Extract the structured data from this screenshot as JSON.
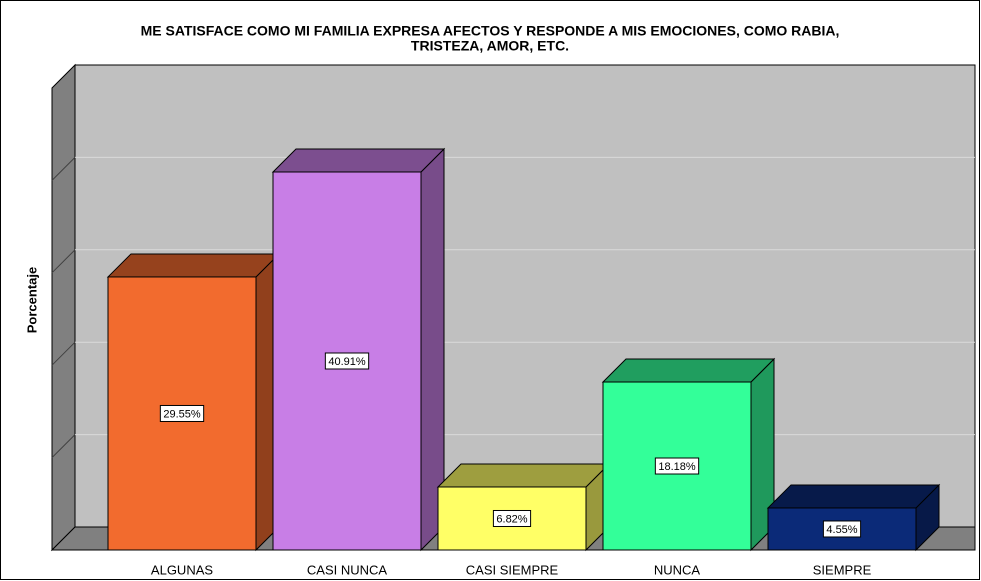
{
  "chart_data": {
    "type": "bar3d",
    "title": [
      "ME SATISFACE COMO MI FAMILIA EXPRESA AFECTOS Y RESPONDE A MIS EMOCIONES, COMO RABIA,",
      "TRISTEZA, AMOR, ETC."
    ],
    "y_label": "Porcentaje",
    "categories": [
      "ALGUNAS",
      "CASI NUNCA",
      "CASI SIEMPRE",
      "NUNCA",
      "SIEMPRE"
    ],
    "values": [
      29.55,
      40.91,
      6.82,
      18.18,
      4.55
    ],
    "value_labels": [
      "29.55%",
      "40.91%",
      "6.82%",
      "18.18%",
      "4.55%"
    ],
    "colors": [
      "#f26b2e",
      "#c87ee6",
      "#ffff66",
      "#33ff99",
      "#0b2a78"
    ],
    "ylim": [
      0,
      50
    ],
    "yticks": [
      0,
      10,
      20,
      30,
      40,
      50
    ],
    "grid": true
  }
}
